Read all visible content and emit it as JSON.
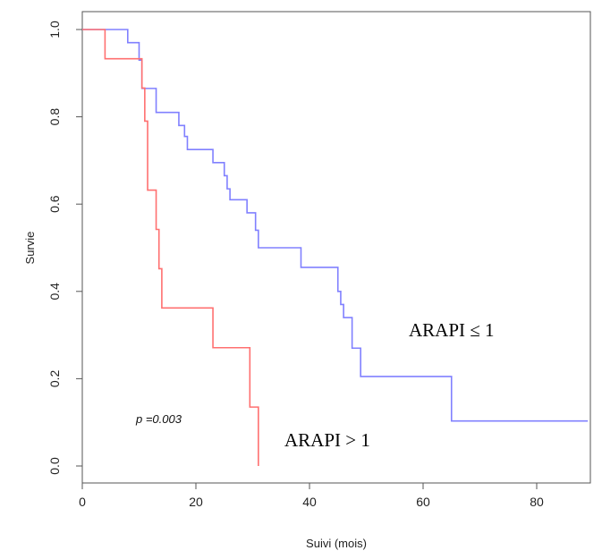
{
  "chart_data": {
    "type": "line",
    "title": "",
    "xlabel": "Suivi (mois)",
    "ylabel": "Survie",
    "xlim": [
      0,
      90
    ],
    "ylim": [
      0,
      1.0
    ],
    "x_ticks": [
      0,
      20,
      40,
      60,
      80
    ],
    "y_ticks": [
      0.0,
      0.2,
      0.4,
      0.6,
      0.8,
      1.0
    ],
    "x_tick_labels": [
      "0",
      "20",
      "40",
      "60",
      "80"
    ],
    "y_tick_labels": [
      "0.0",
      "0.2",
      "0.4",
      "0.6",
      "0.8",
      "1.0"
    ],
    "grid": false,
    "series": [
      {
        "name": "ARAPI ≤ 1",
        "color": "#8080ff",
        "step": true,
        "x": [
          0,
          7,
          8,
          10,
          10.5,
          13,
          17,
          18,
          18.5,
          20,
          23,
          25,
          25.5,
          26,
          29,
          30.5,
          31,
          38.5,
          45,
          45.5,
          46,
          47.5,
          49,
          65,
          89
        ],
        "y": [
          1.0,
          1.0,
          0.97,
          0.93,
          0.865,
          0.81,
          0.78,
          0.755,
          0.725,
          0.725,
          0.695,
          0.665,
          0.635,
          0.61,
          0.58,
          0.54,
          0.5,
          0.455,
          0.4,
          0.37,
          0.34,
          0.27,
          0.205,
          0.103,
          0.103
        ]
      },
      {
        "name": "ARAPI > 1",
        "color": "#ff7070",
        "step": true,
        "x": [
          0,
          4,
          10.5,
          11,
          11.5,
          13,
          13.5,
          14,
          23,
          29.5,
          31
        ],
        "y": [
          1.0,
          0.933,
          0.866,
          0.79,
          0.632,
          0.542,
          0.452,
          0.362,
          0.271,
          0.135,
          0.0
        ]
      }
    ],
    "annotations": {
      "label_high": "ARAPI ≤ 1",
      "label_low": "ARAPI > 1",
      "pvalue": "p =0.003"
    }
  }
}
